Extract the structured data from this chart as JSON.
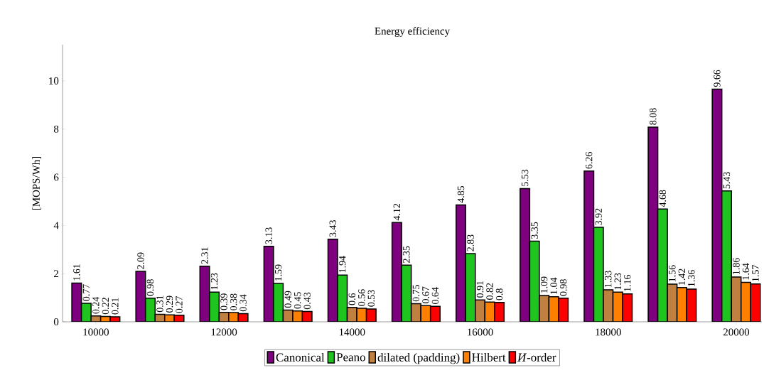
{
  "chart_data": {
    "type": "bar",
    "title": "Energy efficiency",
    "ylabel": "[MOPS/Wh]",
    "x": [
      10000,
      11000,
      12000,
      13000,
      14000,
      15000,
      16000,
      17000,
      18000,
      19000,
      20000
    ],
    "series": [
      {
        "name": "Canonical",
        "color": "#7f007f",
        "values": [
          1.61,
          2.09,
          2.31,
          3.13,
          3.43,
          4.12,
          4.85,
          5.53,
          6.26,
          8.08,
          9.66
        ]
      },
      {
        "name": "Peano",
        "color": "#1fc41f",
        "values": [
          0.77,
          0.98,
          1.23,
          1.59,
          1.94,
          2.35,
          2.83,
          3.35,
          3.92,
          4.68,
          5.43
        ]
      },
      {
        "name": "dilated (padding)",
        "color": "#c08040",
        "values": [
          0.24,
          0.31,
          0.39,
          0.49,
          0.6,
          0.75,
          0.91,
          1.09,
          1.33,
          1.56,
          1.86
        ]
      },
      {
        "name": "Hilbert",
        "color": "#ff8000",
        "values": [
          0.22,
          0.29,
          0.38,
          0.45,
          0.56,
          0.67,
          0.82,
          1.04,
          1.23,
          1.42,
          1.64
        ]
      },
      {
        "name": "*И*-order",
        "color": "#ff0000",
        "values": [
          0.21,
          0.27,
          0.34,
          0.43,
          0.53,
          0.64,
          0.8,
          0.98,
          1.16,
          1.36,
          1.57
        ]
      }
    ],
    "xlim": [
      9480,
      20400
    ],
    "ylim": [
      0,
      11.5
    ],
    "xticks": [
      10000,
      12000,
      14000,
      16000,
      18000,
      20000
    ],
    "yticks": [
      0,
      2,
      4,
      6,
      8,
      10
    ],
    "data_labels": true,
    "legend": "bottom",
    "grid": false
  }
}
